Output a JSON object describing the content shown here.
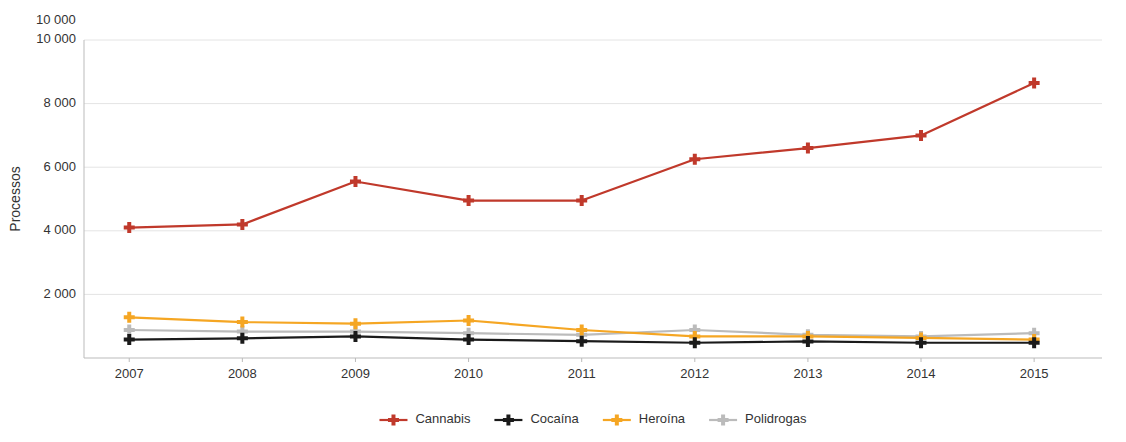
{
  "chart_data": {
    "type": "line",
    "ylabel": "Processos",
    "x": [
      2007,
      2008,
      2009,
      2010,
      2011,
      2012,
      2013,
      2014,
      2015
    ],
    "xlim": [
      2006.6,
      2015.6
    ],
    "xticks": [
      2007,
      2008,
      2009,
      2010,
      2011,
      2012,
      2013,
      2014,
      2015
    ],
    "ylim": [
      0,
      10000
    ],
    "yticks": [
      {
        "value": 2000,
        "label": "2 000"
      },
      {
        "value": 4000,
        "label": "4 000"
      },
      {
        "value": 6000,
        "label": "6 000"
      },
      {
        "value": 8000,
        "label": "8 000"
      },
      {
        "value": 10000,
        "label": "10 000"
      }
    ],
    "grid": true,
    "legend": "bottom",
    "marker": "plus",
    "annotations": [
      {
        "text": "10 000"
      }
    ],
    "series": [
      {
        "name": "Cannabis",
        "color": "#c0392b",
        "values": [
          4100,
          4200,
          5550,
          4950,
          4950,
          6250,
          6600,
          7000,
          8650
        ]
      },
      {
        "name": "Cocaína",
        "color": "#1a1a1a",
        "values": [
          580,
          620,
          680,
          580,
          530,
          480,
          520,
          480,
          480
        ]
      },
      {
        "name": "Heroína",
        "color": "#f5a623",
        "values": [
          1280,
          1130,
          1080,
          1180,
          880,
          680,
          680,
          630,
          580
        ]
      },
      {
        "name": "Polidrogas",
        "color": "#bbbbbb",
        "values": [
          880,
          830,
          830,
          780,
          730,
          880,
          730,
          680,
          780
        ]
      }
    ]
  }
}
